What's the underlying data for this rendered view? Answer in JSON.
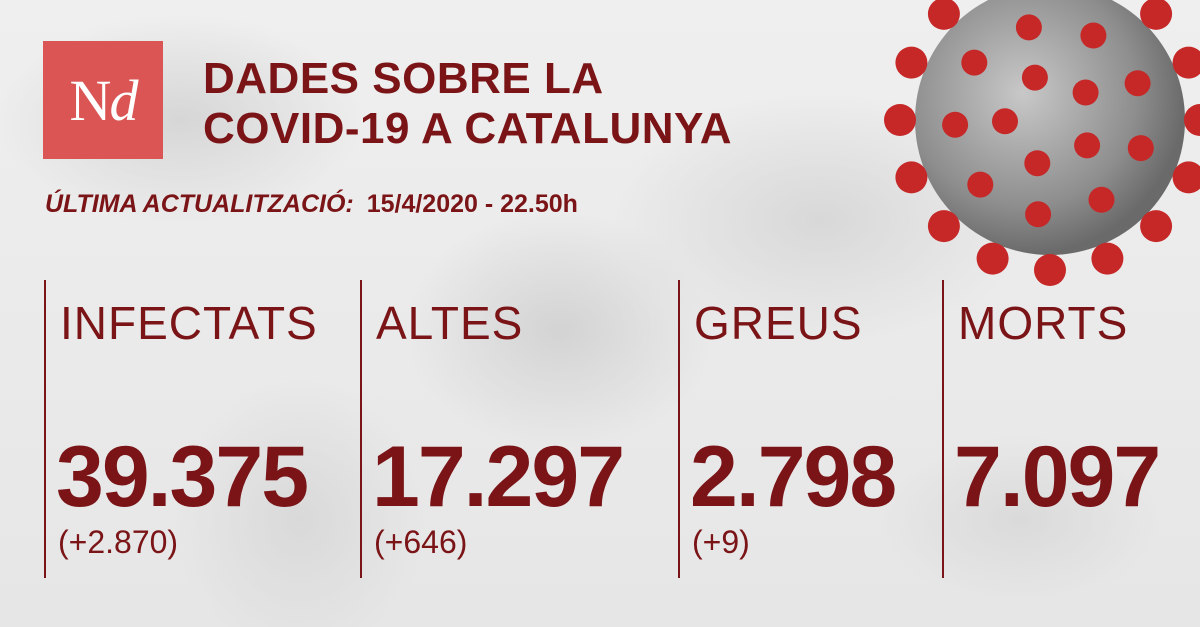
{
  "brand": {
    "logo_n": "N",
    "logo_d": "d"
  },
  "header": {
    "title_line1": "DADES SOBRE LA",
    "title_line2": "COVID-19 A CATALUNYA"
  },
  "update": {
    "label": "ÚLTIMA ACTUALITZACIÓ:",
    "date": "15/4/2020 - 22.50h"
  },
  "stats": [
    {
      "label": "INFECTATS",
      "value": "39.375",
      "delta": "(+2.870)"
    },
    {
      "label": "ALTES",
      "value": "17.297",
      "delta": "(+646)"
    },
    {
      "label": "GREUS",
      "value": "2.798",
      "delta": "(+9)"
    },
    {
      "label": "MORTS",
      "value": "7.097",
      "delta": ""
    }
  ],
  "colors": {
    "accent": "#7a1417",
    "logo_bg": "#db5555",
    "background": "#ececec",
    "virus_body": "#9a9a9a",
    "virus_spike": "#c62828"
  }
}
